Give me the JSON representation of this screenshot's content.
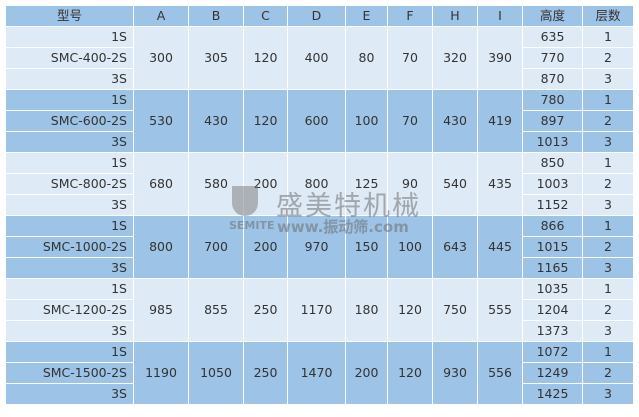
{
  "headers": [
    "型号",
    "A",
    "B",
    "C",
    "D",
    "E",
    "F",
    "H",
    "I",
    "高度",
    "层数"
  ],
  "rows": [
    {
      "model": "SMC-400-2S",
      "sub": [
        "1S",
        "SMC-400-2S",
        "3S"
      ],
      "A": "300",
      "B": "305",
      "C": "120",
      "D": "400",
      "E": "80",
      "F": "70",
      "H": "320",
      "I": "390",
      "heights": [
        "635",
        "770",
        "870"
      ],
      "layers": [
        "1",
        "2",
        "3"
      ]
    },
    {
      "model": "SMC-600-2S",
      "sub": [
        "1S",
        "SMC-600-2S",
        "3S"
      ],
      "A": "530",
      "B": "430",
      "C": "120",
      "D": "600",
      "E": "100",
      "F": "70",
      "H": "430",
      "I": "419",
      "heights": [
        "780",
        "897",
        "1013"
      ],
      "layers": [
        "1",
        "2",
        "3"
      ]
    },
    {
      "model": "SMC-800-2S",
      "sub": [
        "1S",
        "SMC-800-2S",
        "3S"
      ],
      "A": "680",
      "B": "580",
      "C": "200",
      "D": "800",
      "E": "125",
      "F": "90",
      "H": "540",
      "I": "435",
      "heights": [
        "850",
        "1003",
        "1152"
      ],
      "layers": [
        "1",
        "2",
        "3"
      ]
    },
    {
      "model": "SMC-1000-2S",
      "sub": [
        "1S",
        "SMC-1000-2S",
        "3S"
      ],
      "A": "800",
      "B": "700",
      "C": "200",
      "D": "970",
      "E": "150",
      "F": "100",
      "H": "643",
      "I": "445",
      "heights": [
        "866",
        "1015",
        "1165"
      ],
      "layers": [
        "1",
        "2",
        "3"
      ]
    },
    {
      "model": "SMC-1200-2S",
      "sub": [
        "1S",
        "SMC-1200-2S",
        "3S"
      ],
      "A": "985",
      "B": "855",
      "C": "250",
      "D": "1170",
      "E": "180",
      "F": "120",
      "H": "750",
      "I": "555",
      "heights": [
        "1035",
        "1204",
        "1373"
      ],
      "layers": [
        "1",
        "2",
        "3"
      ]
    },
    {
      "model": "SMC-1500-2S",
      "sub": [
        "1S",
        "SMC-1500-2S",
        "3S"
      ],
      "A": "1190",
      "B": "1050",
      "C": "250",
      "D": "1470",
      "E": "200",
      "F": "120",
      "H": "930",
      "I": "556",
      "heights": [
        "1072",
        "1249",
        "1425"
      ],
      "layers": [
        "1",
        "2",
        "3"
      ]
    }
  ],
  "watermark": {
    "cn": "盛美特机械",
    "en": "SEMITE",
    "url": "www.振动筛.com"
  },
  "colors": {
    "header": "#9dc3e6",
    "row_light": "#deebf7",
    "row_dark": "#9dc3e6"
  }
}
